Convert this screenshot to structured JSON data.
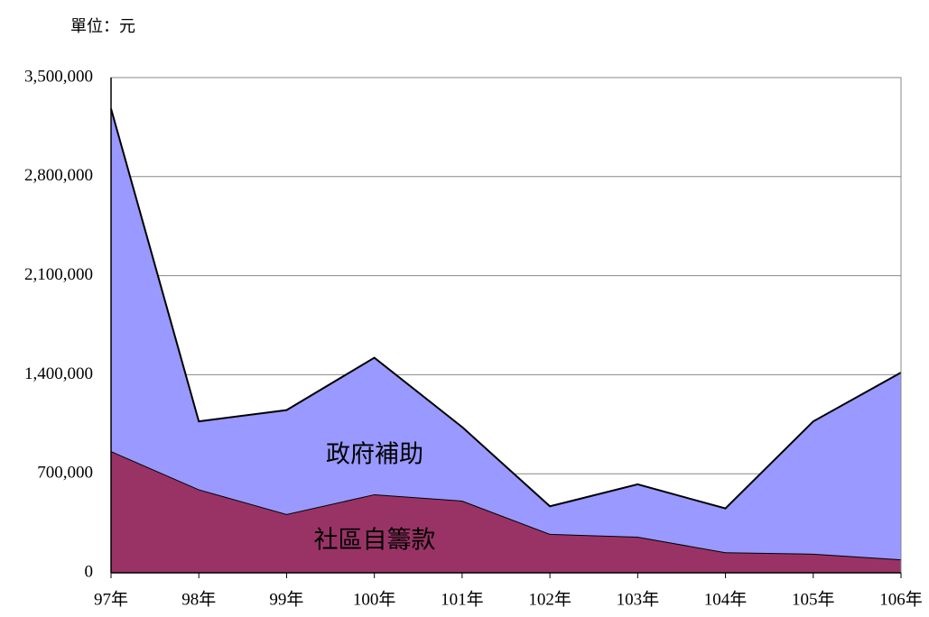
{
  "chart_data": {
    "type": "stacked_area",
    "unit_label": "單位：元",
    "categories": [
      "97年",
      "98年",
      "99年",
      "100年",
      "101年",
      "102年",
      "103年",
      "104年",
      "105年",
      "106年"
    ],
    "series": [
      {
        "name": "社區自籌款",
        "color": "#993366",
        "values": [
          860000,
          590000,
          415000,
          555000,
          510000,
          275000,
          255000,
          145000,
          135000,
          95000
        ]
      },
      {
        "name": "政府補助",
        "color": "#9999ff",
        "values": [
          2420000,
          480000,
          735000,
          965000,
          520000,
          195000,
          370000,
          310000,
          935000,
          1320000
        ]
      }
    ],
    "ylim": [
      0,
      3500000
    ],
    "yticks": [
      0,
      {
        "value": 700000,
        "label": "700,000"
      },
      {
        "value": 1400000,
        "label": "1,400,000"
      },
      {
        "value": 2100000,
        "label": "2,100,000"
      },
      {
        "value": 2800000,
        "label": "2,800,000"
      },
      {
        "value": 3500000,
        "label": "3,500,000"
      }
    ],
    "grid": true
  }
}
